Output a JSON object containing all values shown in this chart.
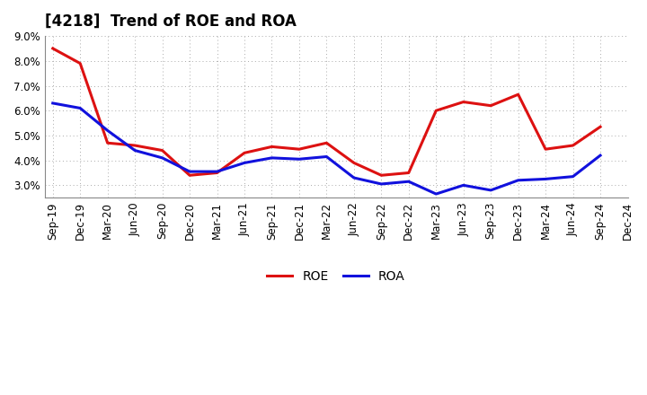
{
  "title": "[4218]  Trend of ROE and ROA",
  "x_labels": [
    "Sep-19",
    "Dec-19",
    "Mar-20",
    "Jun-20",
    "Sep-20",
    "Dec-20",
    "Mar-21",
    "Jun-21",
    "Sep-21",
    "Dec-21",
    "Mar-22",
    "Jun-22",
    "Sep-22",
    "Dec-22",
    "Mar-23",
    "Jun-23",
    "Sep-23",
    "Dec-23",
    "Mar-24",
    "Jun-24",
    "Sep-24",
    "Dec-24"
  ],
  "roe": [
    8.5,
    7.9,
    4.7,
    4.6,
    4.4,
    3.4,
    3.5,
    4.3,
    4.55,
    4.45,
    4.7,
    3.9,
    3.4,
    3.5,
    6.0,
    6.35,
    6.2,
    6.65,
    4.45,
    4.6,
    5.35,
    null
  ],
  "roa": [
    6.3,
    6.1,
    5.2,
    4.4,
    4.1,
    3.55,
    3.55,
    3.9,
    4.1,
    4.05,
    4.15,
    3.3,
    3.05,
    3.15,
    2.65,
    3.0,
    2.8,
    3.2,
    3.25,
    3.35,
    4.2,
    null
  ],
  "roe_color": "#dd1111",
  "roa_color": "#1111dd",
  "ylim": [
    2.5,
    9.0
  ],
  "yticks": [
    3.0,
    4.0,
    5.0,
    6.0,
    7.0,
    8.0,
    9.0
  ],
  "background_color": "#ffffff",
  "plot_bg_color": "#ffffff",
  "grid_color": "#aaaaaa",
  "title_fontsize": 12,
  "legend_fontsize": 10,
  "tick_fontsize": 8.5
}
